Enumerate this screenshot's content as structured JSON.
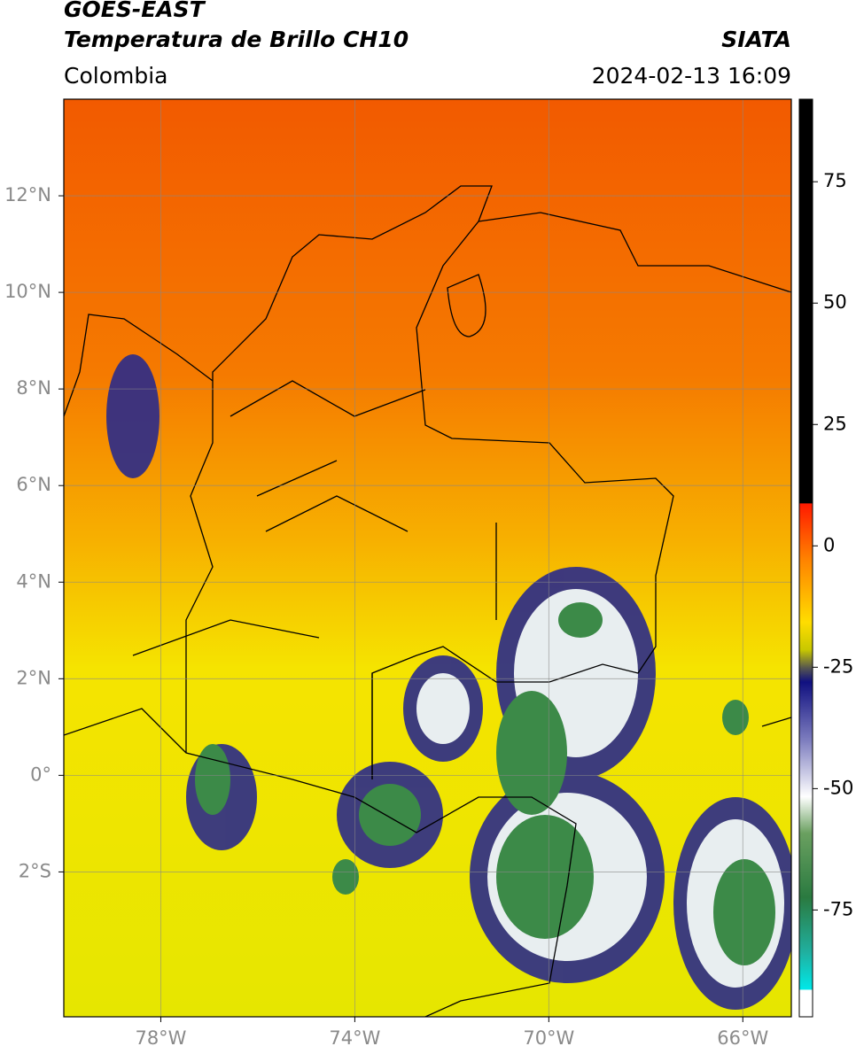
{
  "header": {
    "title": "GOES-EAST",
    "subtitle": "Temperatura de Brillo CH10",
    "source": "SIATA",
    "region": "Colombia",
    "datetime": "2024-02-13 16:09"
  },
  "map": {
    "xlim": [
      -80,
      -65
    ],
    "ylim": [
      -5,
      14
    ],
    "xticks": [
      {
        "value": -78,
        "label": "78°W"
      },
      {
        "value": -74,
        "label": "74°W"
      },
      {
        "value": -70,
        "label": "70°W"
      },
      {
        "value": -66,
        "label": "66°W"
      }
    ],
    "yticks": [
      {
        "value": 12,
        "label": "12°N"
      },
      {
        "value": 10,
        "label": "10°N"
      },
      {
        "value": 8,
        "label": "8°N"
      },
      {
        "value": 6,
        "label": "6°N"
      },
      {
        "value": 4,
        "label": "4°N"
      },
      {
        "value": 2,
        "label": "2°N"
      },
      {
        "value": 0,
        "label": "0°"
      },
      {
        "value": -2,
        "label": "2°S"
      }
    ],
    "grid": true
  },
  "colorbar": {
    "lim": [
      -97,
      92
    ],
    "ticks": [
      75,
      50,
      25,
      0,
      -25,
      -50,
      -75
    ]
  }
}
